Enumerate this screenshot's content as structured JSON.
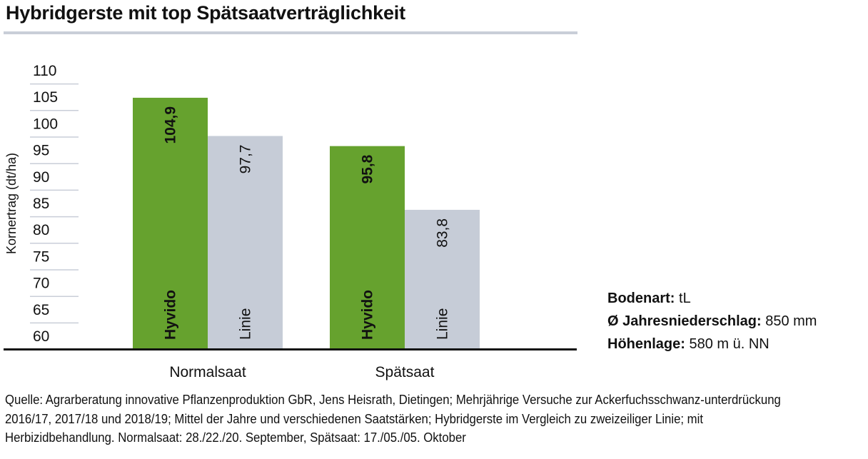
{
  "title": "Hybridgerste mit top Spätsaatverträglichkeit",
  "info": [
    {
      "label": "Bodenart:",
      "value": "tL"
    },
    {
      "label": "Ø Jahresniederschlag:",
      "value": "850 mm"
    },
    {
      "label": "Höhenlage:",
      "value": "580 m ü. NN"
    }
  ],
  "source": "Quelle: Agrarberatung innovative Pflanzenproduktion GbR, Jens Heisrath, Dietingen; Mehrjährige Versuche zur Ackerfuchsschwanz-unterdrückung 2016/17, 2017/18 und 2018/19; Mittel der Jahre und verschiedenen Saatstärken; Hybridgerste im Vergleich zu zweizeiliger Linie; mit Herbizidbehandlung. Normalsaat: 28./22./20. September, Spätsaat: 17./05./05. Oktober",
  "chart_data": {
    "type": "bar",
    "categories": [
      "Normalsaat",
      "Spätsaat"
    ],
    "series": [
      {
        "name": "Hyvido",
        "values": [
          104.9,
          95.8
        ],
        "labels": [
          "104,9",
          "95,8"
        ],
        "color": "#66a22e"
      },
      {
        "name": "Linie",
        "values": [
          97.7,
          83.8
        ],
        "labels": [
          "97,7",
          "83,8"
        ],
        "color": "#c6ccd7"
      }
    ],
    "ylabel": "Kornertrag (dt/ha)",
    "ylim": [
      58,
      110
    ],
    "yticks": [
      "110",
      "105",
      "100",
      "95",
      "90",
      "85",
      "80",
      "75",
      "70",
      "65",
      "60"
    ],
    "grid": true,
    "legend": "inside-bars"
  }
}
